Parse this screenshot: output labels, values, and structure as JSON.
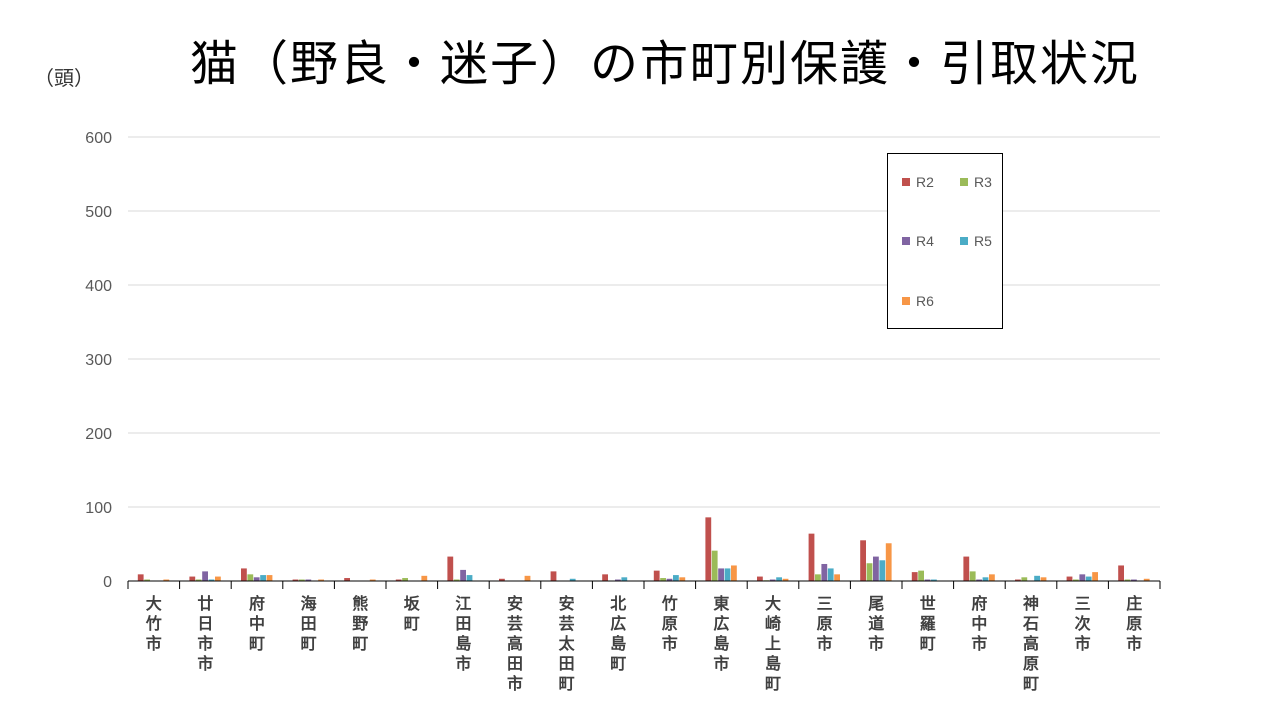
{
  "title": "猫（野良・迷子）の市町別保護・引取状況",
  "unit_label": "（頭）",
  "colors": {
    "R2": "#c0504d",
    "R3": "#9bbb59",
    "R4": "#8064a2",
    "R5": "#4bacc6",
    "R6": "#f79646",
    "grid": "#d9d9d9",
    "axis": "#000000"
  },
  "chart_data": {
    "type": "bar",
    "title": "猫（野良・迷子）の市町別保護・引取状況",
    "ylabel": "（頭）",
    "ylim": [
      0,
      600
    ],
    "yticks": [
      0,
      100,
      200,
      300,
      400,
      500,
      600
    ],
    "grid": true,
    "legend_position": "top-right",
    "categories": [
      "大竹市",
      "廿日市市",
      "府中町",
      "海田町",
      "熊野町",
      "坂町",
      "江田島市",
      "安芸高田市",
      "安芸太田町",
      "北広島町",
      "竹原市",
      "東広島市",
      "大崎上島町",
      "三原市",
      "尾道市",
      "世羅町",
      "府中市",
      "神石高原町",
      "三次市",
      "庄原市"
    ],
    "series": [
      {
        "name": "R2",
        "values": [
          9,
          6,
          17,
          2,
          4,
          2,
          33,
          3,
          13,
          9,
          14,
          86,
          6,
          64,
          55,
          12,
          33,
          2,
          6,
          21
        ]
      },
      {
        "name": "R3",
        "values": [
          2,
          2,
          9,
          2,
          0,
          4,
          2,
          0,
          0,
          0,
          4,
          41,
          1,
          9,
          24,
          14,
          13,
          5,
          2,
          2
        ]
      },
      {
        "name": "R4",
        "values": [
          0,
          13,
          5,
          2,
          0,
          0,
          15,
          0,
          0,
          2,
          3,
          17,
          2,
          23,
          33,
          2,
          2,
          0,
          9,
          2
        ]
      },
      {
        "name": "R5",
        "values": [
          0,
          2,
          8,
          0,
          0,
          0,
          8,
          0,
          3,
          5,
          8,
          17,
          5,
          17,
          28,
          2,
          5,
          7,
          6,
          0
        ]
      },
      {
        "name": "R6",
        "values": [
          2,
          6,
          8,
          2,
          2,
          7,
          0,
          7,
          0,
          0,
          5,
          21,
          3,
          9,
          51,
          0,
          9,
          5,
          12,
          3
        ]
      }
    ]
  }
}
